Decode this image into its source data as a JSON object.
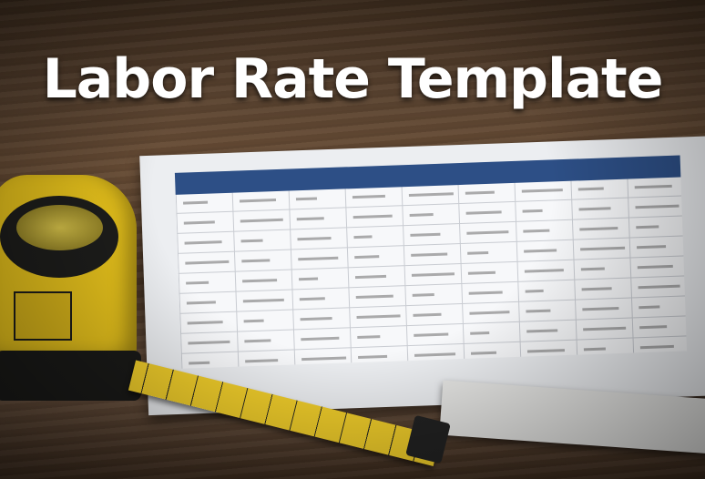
{
  "title": "Labor Rate Template",
  "colors": {
    "header_blue": "#2d4f86",
    "tape_yellow": "#e8c31c",
    "wood": "#5a4330"
  }
}
